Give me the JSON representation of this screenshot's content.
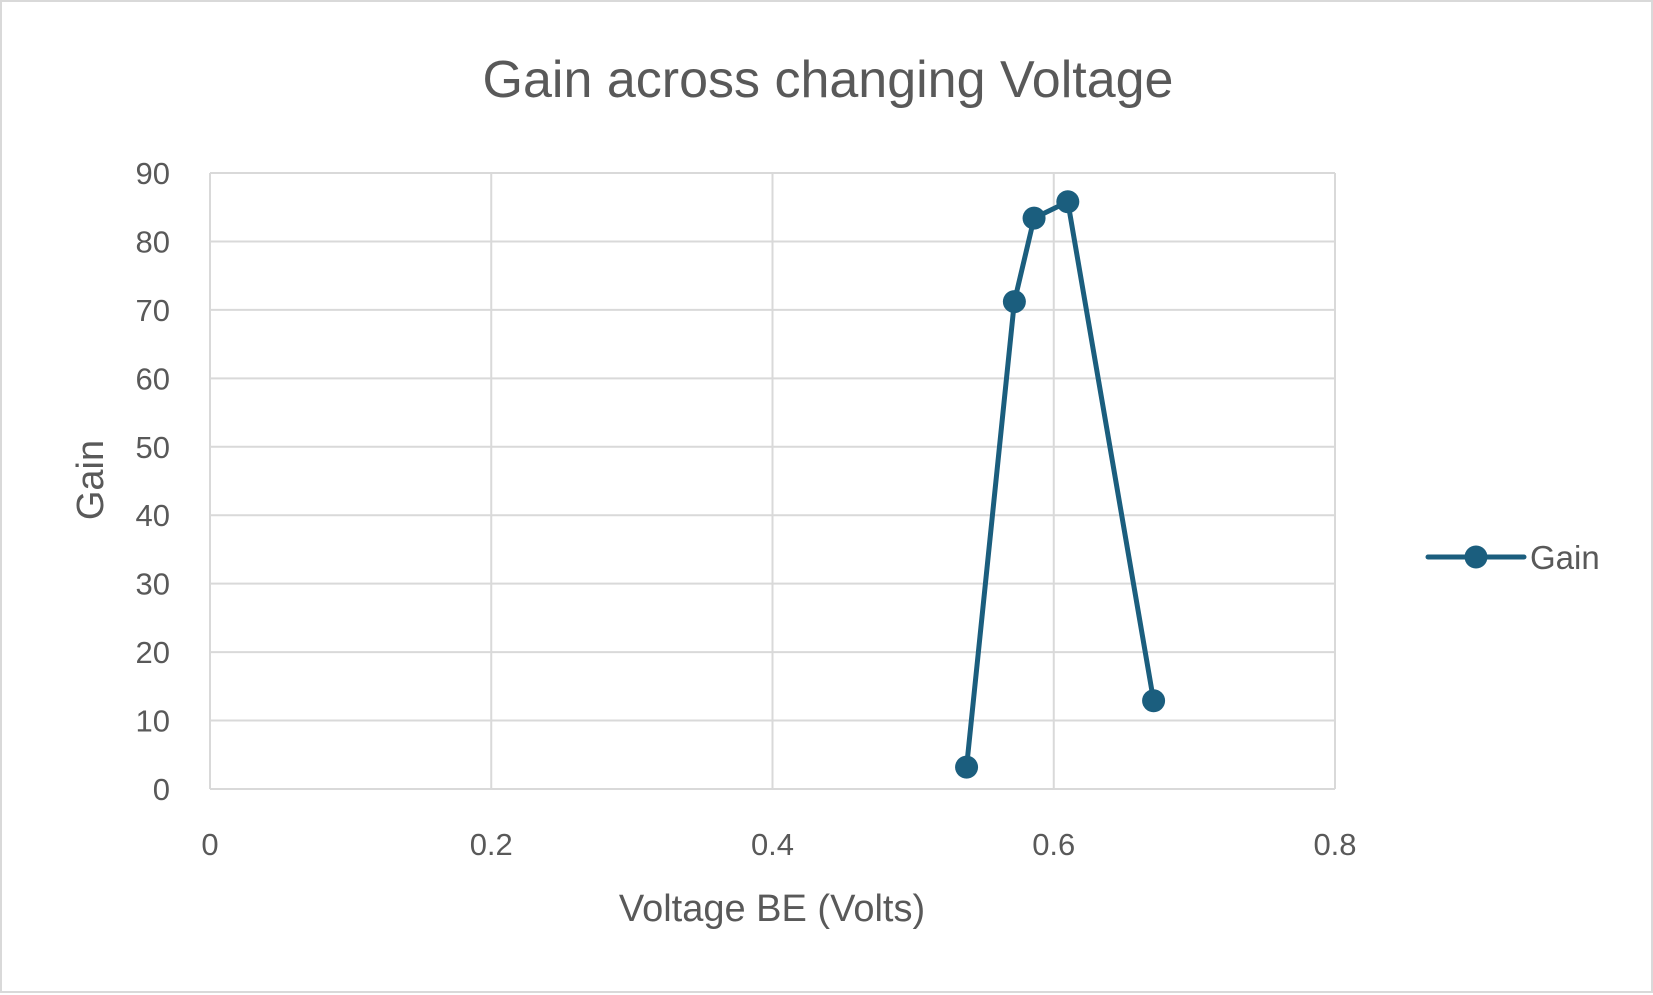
{
  "chart_data": {
    "type": "scatter",
    "title": "Gain across changing Voltage",
    "xlabel": "Voltage BE (Volts)",
    "ylabel": "Gain",
    "xlim": [
      0,
      0.8
    ],
    "ylim": [
      0,
      90
    ],
    "x_ticks": [
      "0",
      "0.2",
      "0.4",
      "0.6",
      "0.8"
    ],
    "y_ticks": [
      "0",
      "10",
      "20",
      "30",
      "40",
      "50",
      "60",
      "70",
      "80",
      "90"
    ],
    "grid": true,
    "legend_position": "right",
    "lines_with_markers": true,
    "series": [
      {
        "name": "Gain",
        "color": "#1b5e7e",
        "points": [
          {
            "x": 0.538,
            "y": 3.2
          },
          {
            "x": 0.572,
            "y": 71.2
          },
          {
            "x": 0.586,
            "y": 83.4
          },
          {
            "x": 0.61,
            "y": 85.8
          },
          {
            "x": 0.671,
            "y": 12.9
          }
        ]
      }
    ]
  }
}
